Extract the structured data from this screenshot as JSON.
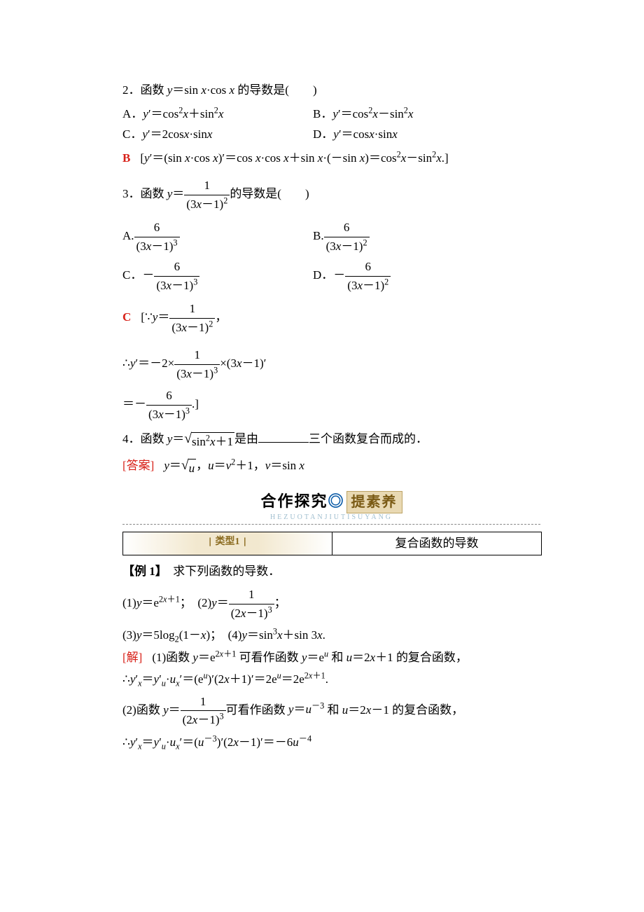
{
  "colors": {
    "answer_red": "#d8221a",
    "accent_blue": "#0a5aa6",
    "box_bg": "#e9d9b3",
    "box_text": "#7a5a14",
    "pinyin": "#9fbecf"
  },
  "q2": {
    "number": "2．",
    "stem_pre": "函数 ",
    "stem_expr_y": "y",
    "stem_eq": "＝",
    "stem_expr_rhs": "sin x·cos x",
    "stem_post": " 的导数是(　　)",
    "optA_label": "A．",
    "optA_expr": "y′＝cos²x＋sin²x",
    "optB_label": "B．",
    "optB_expr": "y′＝cos²x－sin²x",
    "optC_label": "C．",
    "optC_expr": "y′＝2cosx·sinx",
    "optD_label": "D．",
    "optD_expr": "y′＝cosx·sinx",
    "answer_letter": "B",
    "answer_expl": "[y′＝(sin x·cos x)′＝cos x·cos x＋sin x·(－sin x)＝cos²x－sin²x.]"
  },
  "q3": {
    "number": "3．",
    "stem_pre": "函数 ",
    "stem_y": "y",
    "stem_eq": "＝",
    "frac_num": "1",
    "frac_den": "(3x－1)²",
    "stem_post": "的导数是(　　)",
    "optA_label": "A.",
    "optA_num": "6",
    "optA_den": "(3x－1)³",
    "optB_label": "B.",
    "optB_num": "6",
    "optB_den": "(3x－1)²",
    "optC_label": "C．",
    "optC_neg": "－",
    "optC_num": "6",
    "optC_den": "(3x－1)³",
    "optD_label": "D．",
    "optD_neg": "－",
    "optD_num": "6",
    "optD_den": "(3x－1)²",
    "answer_letter": "C",
    "expl_open": "[∵",
    "expl_y": "y",
    "expl_eq": "＝",
    "expl_f1_num": "1",
    "expl_f1_den": "(3x－1)²",
    "expl_comma": "，",
    "line2_pre": "∴y′＝－2×",
    "line2_num": "1",
    "line2_den": "(3x－1)³",
    "line2_post": "×(3x－1)′",
    "line3_pre": "＝－",
    "line3_num": "6",
    "line3_den": "(3x－1)³",
    "line3_post": ".]"
  },
  "q4": {
    "number": "4．",
    "stem_pre": "函数 ",
    "stem_y": "y",
    "stem_eq": "＝",
    "radicand": "sin²x＋1",
    "stem_mid": "是由",
    "stem_post": "三个函数复合而成的．",
    "ans_label": "[答案]",
    "ans_expr_1_lhs": "y",
    "ans_expr_1_eq": "＝",
    "ans_expr_1_rad": "u",
    "ans_sep1": "，",
    "ans_expr_2": "u＝v²＋1",
    "ans_sep2": "，",
    "ans_expr_3": "v＝sin x"
  },
  "section": {
    "title_left": "合作探究",
    "title_dot": "◎",
    "title_right": "提素养",
    "pinyin": "HEZUOTANJIUTISUYANG",
    "type_label": "类型1",
    "type_title": "复合函数的导数"
  },
  "example": {
    "label": "【例 1】",
    "stem": "　求下列函数的导数．",
    "item1_label": "(1)",
    "item1_expr": "y＝e",
    "item1_exp": "2x＋1",
    "item1_sep": "；",
    "item2_label": "(2)",
    "item2_y": "y",
    "item2_eq": "＝",
    "item2_num": "1",
    "item2_den": "(2x－1)³",
    "item2_end": "；",
    "item3_label": "(3)",
    "item3_expr": "y＝5log₂(1－x)",
    "item3_sep": "；",
    "item4_label": "(4)",
    "item4_expr": "y＝sin³x＋sin 3x.",
    "sol_label": "[解]",
    "sol1_pre": "(1)函数 ",
    "sol1_expr1": "y＝e",
    "sol1_exp1": "2x＋1",
    "sol1_mid": " 可看作函数 ",
    "sol1_expr2": "y＝e",
    "sol1_exp2": "u",
    "sol1_and": " 和 ",
    "sol1_expr3": "u＝2x＋1",
    "sol1_post": " 的复合函数，",
    "sol1_line2": "∴y′ₓ＝y′ᵤ·uₓ′＝(eᵘ)′(2x＋1)′＝2eᵘ＝2e",
    "sol1_line2_exp": "2x＋1",
    "sol1_line2_end": ".",
    "sol2_pre": "(2)函数 ",
    "sol2_y": "y",
    "sol2_eq": "＝",
    "sol2_num": "1",
    "sol2_den": "(2x－1)³",
    "sol2_mid": "可看作函数 ",
    "sol2_expr2": "y＝u⁻³",
    "sol2_and": " 和 ",
    "sol2_expr3": "u＝2x－1",
    "sol2_post": " 的复合函数，",
    "sol2_line2": "∴y′ₓ＝y′ᵤ·uₓ′＝(u⁻³)′(2x－1)′＝－6u⁻⁴"
  }
}
